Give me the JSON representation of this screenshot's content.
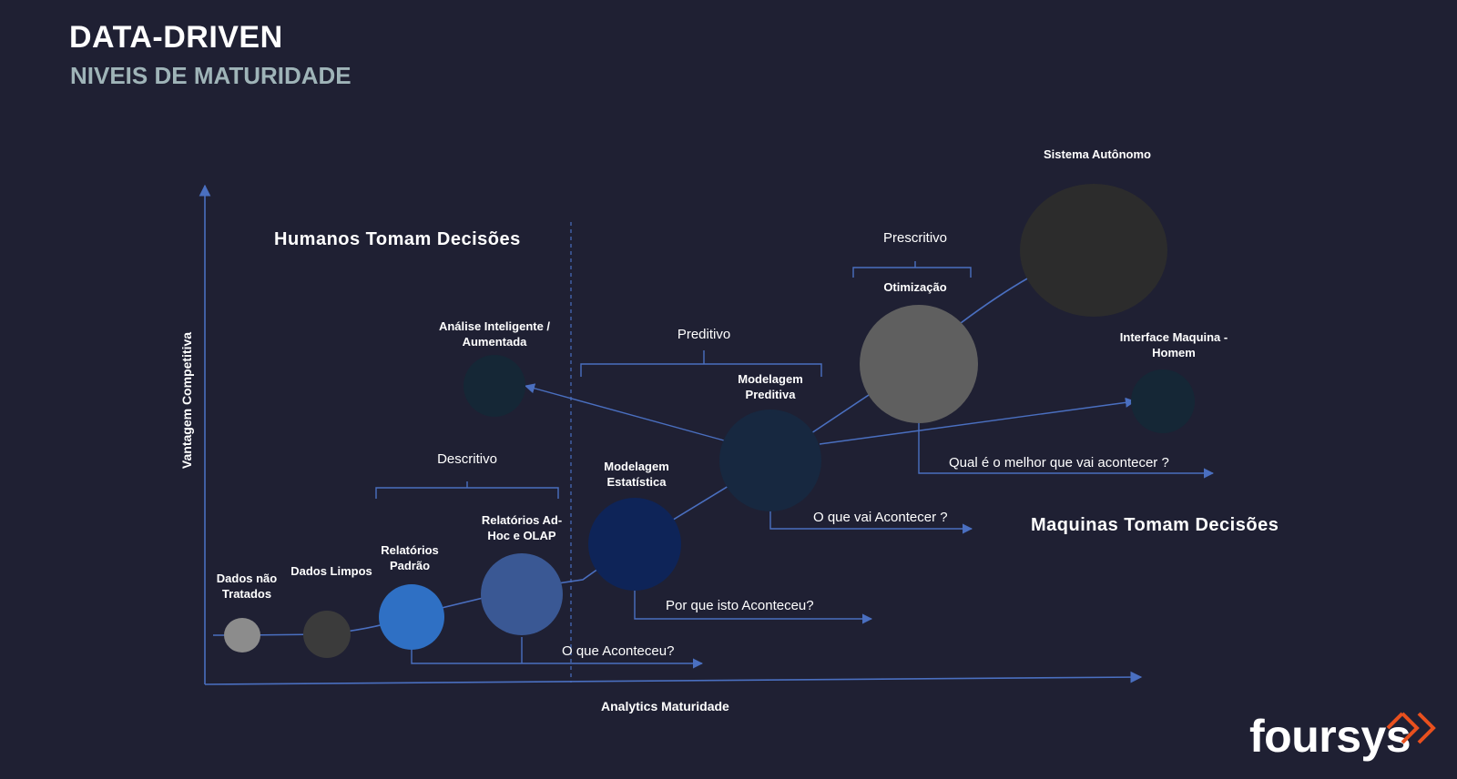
{
  "header": {
    "title": "DATA-DRIVEN",
    "subtitle": "NIVEIS DE MATURIDADE"
  },
  "axes": {
    "y_label": "Vantagem Competitiva",
    "x_label": "Analytics Maturidade"
  },
  "regions": {
    "humans": "Humanos Tomam Decisões",
    "machines": "Maquinas Tomam Decisões"
  },
  "phases": {
    "descriptive": "Descritivo",
    "predictive": "Preditivo",
    "prescriptive": "Prescritivo"
  },
  "nodes": {
    "raw_data": {
      "label1": "Dados não",
      "label2": "Tratados",
      "color": "#8c8c8c"
    },
    "clean_data": {
      "label1": "Dados Limpos",
      "color": "#3b3b3b"
    },
    "standard_reports": {
      "label1": "Relatórios",
      "label2": "Padrão",
      "color": "#2f70c4"
    },
    "adhoc_olap": {
      "label1": "Relatórios Ad-",
      "label2": "Hoc e OLAP",
      "color": "#3a5894"
    },
    "statistical_modeling": {
      "label1": "Modelagem",
      "label2": "Estatística",
      "color": "#0e2458"
    },
    "predictive_modeling": {
      "label1": "Modelagem",
      "label2": "Preditiva",
      "color": "#172840"
    },
    "optimization": {
      "label1": "Otimização",
      "color": "#5f5f5f"
    },
    "autonomous_system": {
      "label1": "Sistema Autônomo",
      "color": "#2c2c2c"
    },
    "intelligent_analysis": {
      "label1": "Análise Inteligente /",
      "label2": "Aumentada",
      "color": "#152736"
    },
    "human_machine_interface": {
      "label1": "Interface Maquina -",
      "label2": "Homem",
      "color": "#152736"
    }
  },
  "questions": {
    "what_happened": "O que Aconteceu?",
    "why_happened": "Por que isto Aconteceu?",
    "what_will_happen": "O que vai Acontecer ?",
    "best_outcome": "Qual é o melhor que vai acontecer ?"
  },
  "colors": {
    "background": "#1f2033",
    "line": "#4a6fc0",
    "subtitle": "#9fb4b8",
    "logo_accent": "#e8501e"
  },
  "logo": {
    "text": "foursys"
  }
}
